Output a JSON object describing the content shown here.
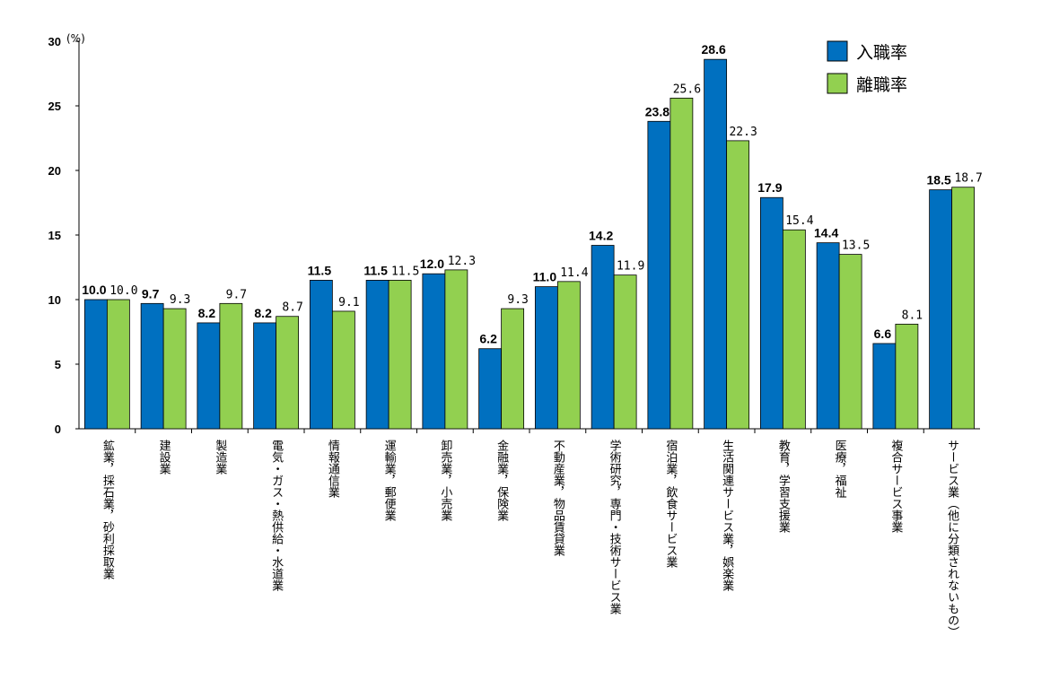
{
  "chart_data": {
    "type": "bar",
    "unit_label": "(%)",
    "ylim": [
      0,
      30
    ],
    "yticks": [
      0,
      5,
      10,
      15,
      20,
      25,
      30
    ],
    "grid": false,
    "legend_position": "top-right",
    "categories": [
      "鉱業，採石業，砂利採取業",
      "建設業",
      "製造業",
      "電気・ガス・熱供給・水道業",
      "情報通信業",
      "運輸業，郵便業",
      "卸売業，小売業",
      "金融業，保険業",
      "不動産業，物品賃貸業",
      "学術研究，専門・技術サービス業",
      "宿泊業，飲食サービス業",
      "生活関連サービス業，娯楽業",
      "教育，学習支援業",
      "医療，福祉",
      "複合サービス事業",
      "サービス業（他に分類されないもの）"
    ],
    "series": [
      {
        "name": "入職率",
        "color": "#0070C0",
        "values": [
          10.0,
          9.7,
          8.2,
          8.2,
          11.5,
          11.5,
          12.0,
          6.2,
          11.0,
          14.2,
          23.8,
          28.6,
          17.9,
          14.4,
          6.6,
          18.5
        ]
      },
      {
        "name": "離職率",
        "color": "#92D050",
        "values": [
          10.0,
          9.3,
          9.7,
          8.7,
          9.1,
          11.5,
          12.3,
          9.3,
          11.4,
          11.9,
          25.6,
          22.3,
          15.4,
          13.5,
          8.1,
          18.7
        ]
      }
    ]
  }
}
